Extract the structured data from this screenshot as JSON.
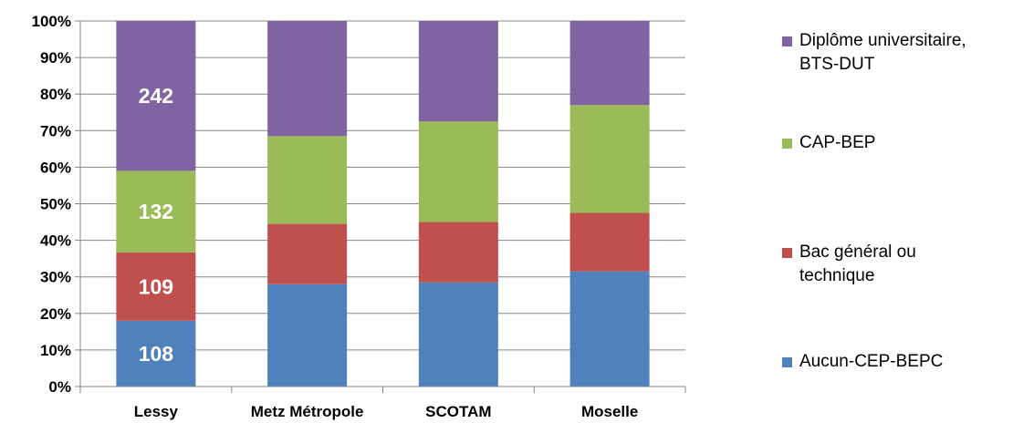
{
  "chart_data": {
    "type": "bar",
    "stacked": true,
    "percent_stacked": true,
    "title": "",
    "xlabel": "",
    "ylabel": "",
    "ylim": [
      0,
      100
    ],
    "y_ticks": [
      "0%",
      "10%",
      "20%",
      "30%",
      "40%",
      "50%",
      "60%",
      "70%",
      "80%",
      "90%",
      "100%"
    ],
    "grid": true,
    "legend_position": "right",
    "categories": [
      "Lessy",
      "Metz Métropole",
      "SCOTAM",
      "Moselle"
    ],
    "series": [
      {
        "name": "Aucun-CEP-BEPC",
        "color": "#4F81BD",
        "values": [
          18.0,
          28.0,
          28.5,
          31.5
        ],
        "labels": [
          "108",
          "",
          "",
          ""
        ]
      },
      {
        "name": "Bac général ou technique",
        "color": "#C0504D",
        "values": [
          18.7,
          16.5,
          16.5,
          16.0
        ],
        "labels": [
          "109",
          "",
          "",
          ""
        ]
      },
      {
        "name": "CAP-BEP",
        "color": "#9BBB59",
        "values": [
          22.3,
          24.0,
          27.5,
          29.5
        ],
        "labels": [
          "132",
          "",
          "",
          ""
        ]
      },
      {
        "name": "Diplôme universitaire, BTS-DUT",
        "color": "#8064A2",
        "values": [
          41.0,
          31.5,
          27.5,
          23.0
        ],
        "labels": [
          "242",
          "",
          "",
          ""
        ]
      }
    ],
    "legend": [
      {
        "lines": [
          "Diplôme universitaire,",
          "BTS-DUT"
        ],
        "color": "#8064A2"
      },
      {
        "lines": [
          "CAP-BEP"
        ],
        "color": "#9BBB59"
      },
      {
        "lines": [
          "Bac général ou",
          "technique"
        ],
        "color": "#C0504D"
      },
      {
        "lines": [
          "Aucun-CEP-BEPC"
        ],
        "color": "#4F81BD"
      }
    ]
  }
}
